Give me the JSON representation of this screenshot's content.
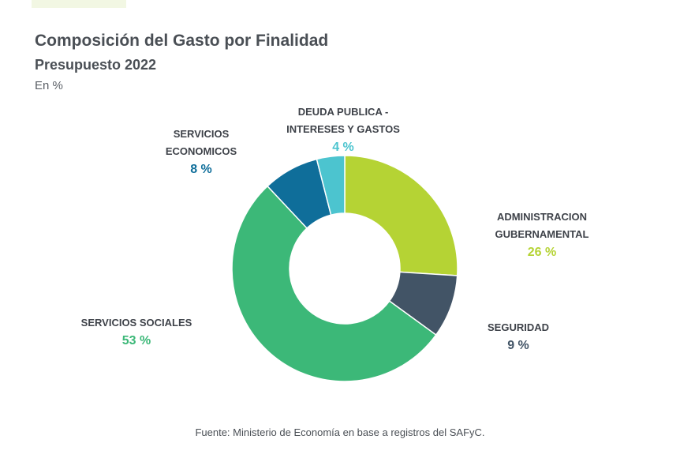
{
  "header": {
    "title": "Composición del Gasto por Finalidad",
    "subtitle": "Presupuesto 2022",
    "unit": "En %"
  },
  "footer": {
    "source": "Fuente: Ministerio de Economía en base a registros del SAFyC."
  },
  "chart_data": {
    "type": "pie",
    "style": "donut",
    "title": "Composición del Gasto por Finalidad",
    "subtitle": "Presupuesto 2022",
    "unit": "En %",
    "slices": [
      {
        "label_line1": "ADMINISTRACION",
        "label_line2": "GUBERNAMENTAL",
        "value": 26,
        "value_label": "26 %",
        "color": "#b5d334"
      },
      {
        "label_line1": "SEGURIDAD",
        "label_line2": "",
        "value": 9,
        "value_label": "9 %",
        "color": "#425466"
      },
      {
        "label_line1": "SERVICIOS SOCIALES",
        "label_line2": "",
        "value": 53,
        "value_label": "53 %",
        "color": "#3cb878"
      },
      {
        "label_line1": "SERVICIOS",
        "label_line2": "ECONOMICOS",
        "value": 8,
        "value_label": "8 %",
        "color": "#0f6e9a"
      },
      {
        "label_line1": "DEUDA PUBLICA -",
        "label_line2": "INTERESES Y GASTOS",
        "value": 4,
        "value_label": "4 %",
        "color": "#4cc4cf"
      }
    ]
  }
}
